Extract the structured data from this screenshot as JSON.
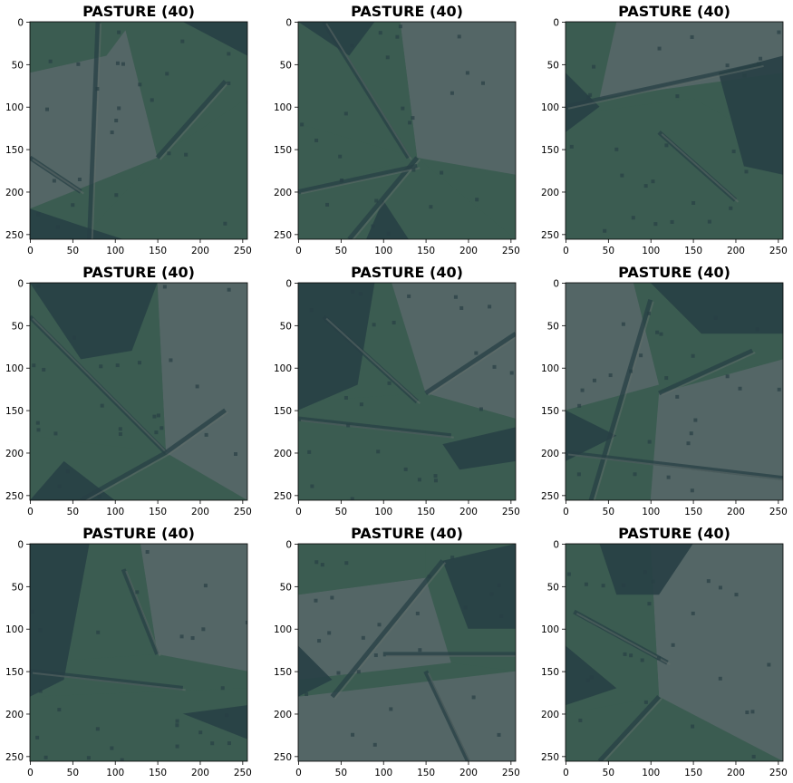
{
  "figure": {
    "panels": [
      {
        "title": "PASTURE (40)",
        "xticks": [
          "0",
          "50",
          "100",
          "150",
          "200",
          "250"
        ],
        "yticks": [
          "0",
          "50",
          "100",
          "150",
          "200",
          "250"
        ]
      },
      {
        "title": "PASTURE (40)",
        "xticks": [
          "0",
          "50",
          "100",
          "150",
          "200",
          "250"
        ],
        "yticks": [
          "0",
          "50",
          "100",
          "150",
          "200",
          "250"
        ]
      },
      {
        "title": "PASTURE (40)",
        "xticks": [
          "0",
          "50",
          "100",
          "150",
          "200",
          "250"
        ],
        "yticks": [
          "0",
          "50",
          "100",
          "150",
          "200",
          "250"
        ]
      },
      {
        "title": "PASTURE (40)",
        "xticks": [
          "0",
          "50",
          "100",
          "150",
          "200",
          "250"
        ],
        "yticks": [
          "0",
          "50",
          "100",
          "150",
          "200",
          "250"
        ]
      },
      {
        "title": "PASTURE (40)",
        "xticks": [
          "0",
          "50",
          "100",
          "150",
          "200",
          "250"
        ],
        "yticks": [
          "0",
          "50",
          "100",
          "150",
          "200",
          "250"
        ]
      },
      {
        "title": "PASTURE (40)",
        "xticks": [
          "0",
          "50",
          "100",
          "150",
          "200",
          "250"
        ],
        "yticks": [
          "0",
          "50",
          "100",
          "150",
          "200",
          "250"
        ]
      },
      {
        "title": "PASTURE (40)",
        "xticks": [
          "0",
          "50",
          "100",
          "150",
          "200",
          "250"
        ],
        "yticks": [
          "0",
          "50",
          "100",
          "150",
          "200",
          "250"
        ]
      },
      {
        "title": "PASTURE (40)",
        "xticks": [
          "0",
          "50",
          "100",
          "150",
          "200",
          "250"
        ],
        "yticks": [
          "0",
          "50",
          "100",
          "150",
          "200",
          "250"
        ]
      },
      {
        "title": "PASTURE (40)",
        "xticks": [
          "0",
          "50",
          "100",
          "150",
          "200",
          "250"
        ],
        "yticks": [
          "0",
          "50",
          "100",
          "150",
          "200",
          "250"
        ]
      }
    ],
    "image_extent": [
      0,
      256
    ],
    "colors": {
      "field_light": "#5a6a6a",
      "field_green": "#3e5f52",
      "field_dark": "#2a4a4a",
      "tree_dark": "#283f45",
      "path": "#6a7470"
    }
  }
}
